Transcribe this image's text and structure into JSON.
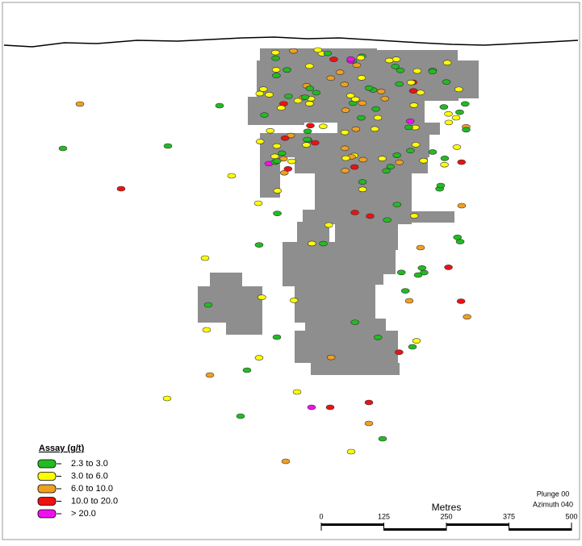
{
  "legend": {
    "title": "Assay (g/t)",
    "items": [
      {
        "label": "2.3 to 3.0",
        "color": "#22bb22"
      },
      {
        "label": "3.0 to 6.0",
        "color": "#ffff00"
      },
      {
        "label": "6.0 to 10.0",
        "color": "#f0a020"
      },
      {
        "label": "10.0 to 20.0",
        "color": "#ee1111"
      },
      {
        "label": "> 20.0",
        "color": "#ee11ee"
      }
    ]
  },
  "scale_bar": {
    "label": "Metres",
    "ticks": [
      0,
      125,
      250,
      375,
      500
    ]
  },
  "view": {
    "plunge": "Plunge 00",
    "azimuth": "Azimuth 040"
  }
}
